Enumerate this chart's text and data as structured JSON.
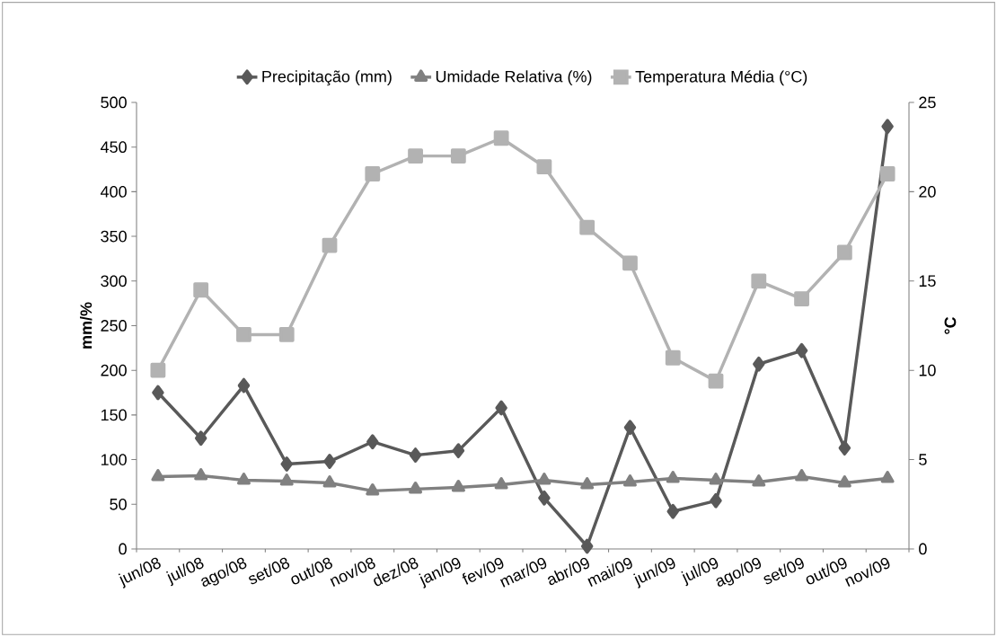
{
  "chart_data": {
    "type": "line",
    "ylabel": "mm/%",
    "y2label": "°C",
    "legend": "top",
    "categories": [
      "jun/08",
      "jul/08",
      "ago/08",
      "set/08",
      "out/08",
      "nov/08",
      "dez/08",
      "jan/09",
      "fev/09",
      "mar/09",
      "abr/09",
      "mai/09",
      "jun/09",
      "jul/09",
      "ago/09",
      "set/09",
      "out/09",
      "nov/09"
    ],
    "ylim": [
      0,
      500
    ],
    "yticks": [
      0,
      50,
      100,
      150,
      200,
      250,
      300,
      350,
      400,
      450,
      500
    ],
    "y2lim": [
      0,
      25
    ],
    "y2ticks": [
      0,
      5,
      10,
      15,
      20,
      25
    ],
    "series": [
      {
        "name": "Precipitação (mm)",
        "color": "#595959",
        "marker": "diamond",
        "values": [
          175,
          124,
          183,
          95,
          98,
          120,
          105,
          110,
          158,
          57,
          3,
          136,
          42,
          54,
          207,
          222,
          113,
          473
        ]
      },
      {
        "name": "Umidade Relativa (%)",
        "color": "#808080",
        "marker": "triangle",
        "values": [
          81,
          82,
          77,
          76,
          74,
          65,
          67,
          69,
          72,
          77,
          72,
          75,
          79,
          77,
          75,
          81,
          74,
          79
        ]
      },
      {
        "name": "Temperatura Média (°C)",
        "color": "#b2b2b2",
        "marker": "square",
        "axis": "y2",
        "values": [
          10,
          14.5,
          12,
          12,
          17,
          21,
          22,
          22,
          23,
          21.4,
          18,
          16,
          10.7,
          9.4,
          15,
          14,
          16.6,
          21
        ]
      }
    ]
  }
}
